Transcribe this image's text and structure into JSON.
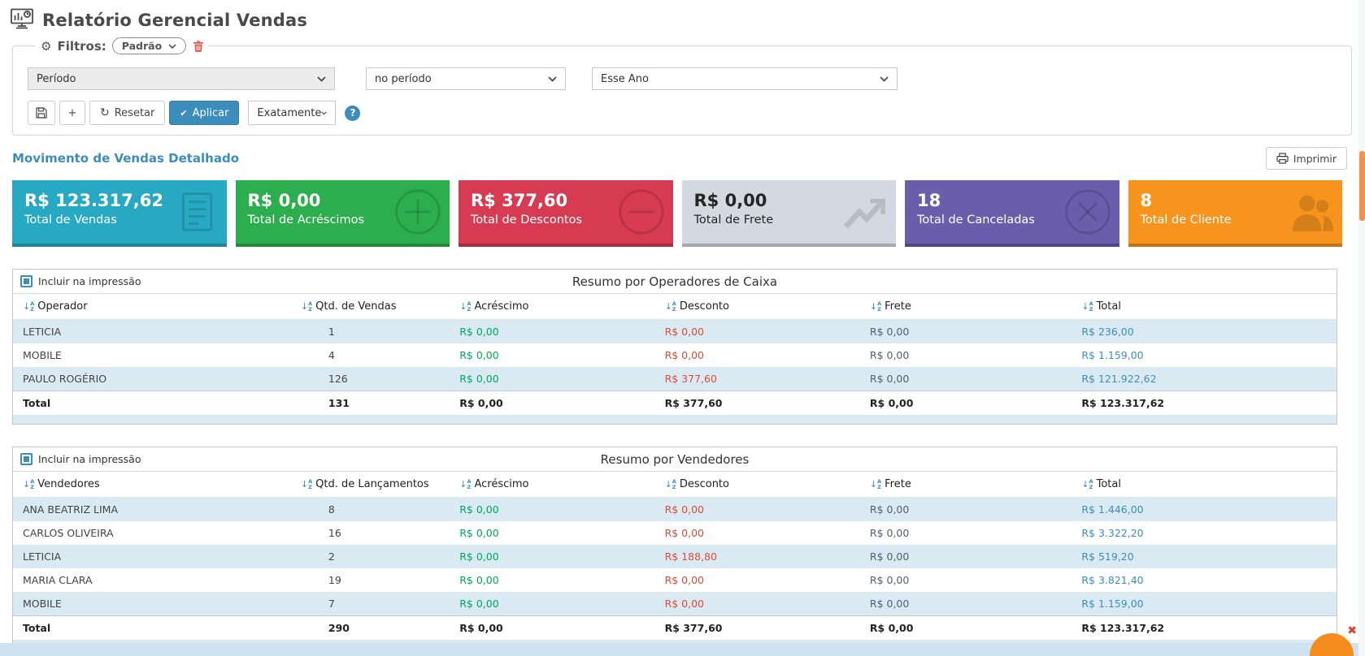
{
  "header": {
    "title": "Relatório Gerencial Vendas"
  },
  "filters": {
    "legend": "Filtros:",
    "preset_value": "Padrão",
    "field_select": "Período",
    "operator_select": "no período",
    "value_select": "Esse Ano",
    "add_label": "+",
    "reset_label": "Resetar",
    "apply_label": "Aplicar",
    "match_select": "Exatamente"
  },
  "report": {
    "link_label": "Movimento de Vendas Detalhado",
    "print_label": "Imprimir"
  },
  "cards": [
    {
      "value": "R$ 123.317,62",
      "label": "Total de Vendas",
      "color": "#27a9c3",
      "text": "#ffffff",
      "icon": "document-icon"
    },
    {
      "value": "R$ 0,00",
      "label": "Total de Acréscimos",
      "color": "#2dae4e",
      "text": "#ffffff",
      "icon": "plus-circle-icon"
    },
    {
      "value": "R$ 377,60",
      "label": "Total de Descontos",
      "color": "#d63b52",
      "text": "#ffffff",
      "icon": "minus-circle-icon"
    },
    {
      "value": "R$ 0,00",
      "label": "Total de Frete",
      "color": "#d4d9e1",
      "text": "#252525",
      "icon": "trend-up-icon"
    },
    {
      "value": "18",
      "label": "Total de Canceladas",
      "color": "#6a5dab",
      "text": "#ffffff",
      "icon": "x-circle-icon"
    },
    {
      "value": "8",
      "label": "Total de Cliente",
      "color": "#f7941e",
      "text": "#ffffff",
      "icon": "users-icon"
    }
  ],
  "tables": [
    {
      "include_label": "Incluir na impressão",
      "title": "Resumo por Operadores de Caixa",
      "columns": [
        "Operador",
        "Qtd. de Vendas",
        "Acréscimo",
        "Desconto",
        "Frete",
        "Total"
      ],
      "rows": [
        [
          "LETICIA",
          "1",
          "R$ 0,00",
          "R$ 0,00",
          "R$ 0,00",
          "R$ 236,00"
        ],
        [
          "MOBILE",
          "4",
          "R$ 0,00",
          "R$ 0,00",
          "R$ 0,00",
          "R$ 1.159,00"
        ],
        [
          "PAULO ROGÉRIO",
          "126",
          "R$ 0,00",
          "R$ 377,60",
          "R$ 0,00",
          "R$ 121.922,62"
        ]
      ],
      "total_row": [
        "Total",
        "131",
        "R$ 0,00",
        "R$ 377,60",
        "R$ 0,00",
        "R$ 123.317,62"
      ]
    },
    {
      "include_label": "Incluir na impressão",
      "title": "Resumo por Vendedores",
      "columns": [
        "Vendedores",
        "Qtd. de Lançamentos",
        "Acréscimo",
        "Desconto",
        "Frete",
        "Total"
      ],
      "rows": [
        [
          "ANA BEATRIZ LIMA",
          "8",
          "R$ 0,00",
          "R$ 0,00",
          "R$ 0,00",
          "R$ 1.446,00"
        ],
        [
          "CARLOS OLIVEIRA",
          "16",
          "R$ 0,00",
          "R$ 0,00",
          "R$ 0,00",
          "R$ 3.322,20"
        ],
        [
          "LETICIA",
          "2",
          "R$ 0,00",
          "R$ 188,80",
          "R$ 0,00",
          "R$ 519,20"
        ],
        [
          "MARIA CLARA",
          "19",
          "R$ 0,00",
          "R$ 0,00",
          "R$ 0,00",
          "R$ 3.821,40"
        ],
        [
          "MOBILE",
          "7",
          "R$ 0,00",
          "R$ 0,00",
          "R$ 0,00",
          "R$ 1.159,00"
        ]
      ],
      "total_row": [
        "Total",
        "290",
        "R$ 0,00",
        "R$ 377,60",
        "R$ 0,00",
        "R$ 123.317,62"
      ]
    }
  ],
  "colors": {
    "accent_blue": "#3c8dbc",
    "positive_green": "#00a65a",
    "negative_red": "#dd4b39",
    "row_alt": "#daeaf3",
    "fab_orange": "#f68b1e"
  }
}
